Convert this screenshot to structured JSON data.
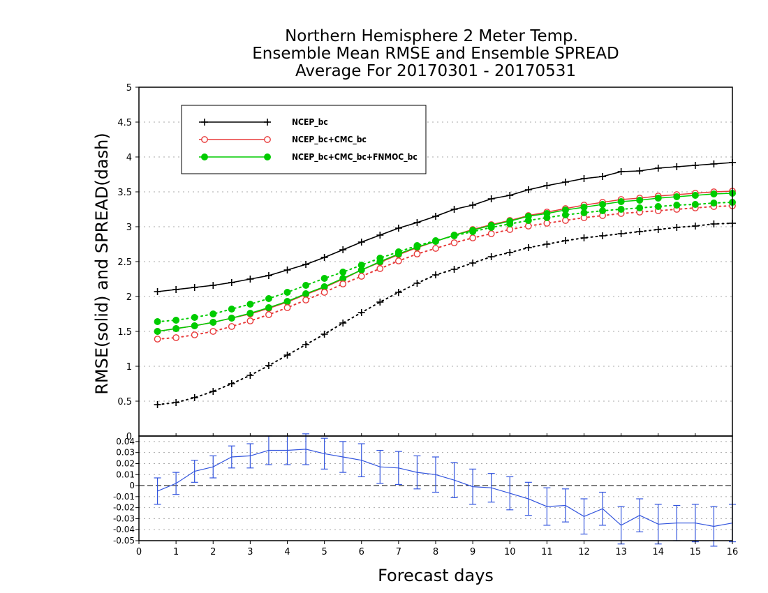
{
  "chart_data": [
    {
      "type": "line",
      "title": [
        "Northern Hemisphere 2 Meter Temp.",
        "Ensemble Mean RMSE and Ensemble SPREAD",
        "Average For 20170301 - 20170531"
      ],
      "xlabel": "Forecast days",
      "ylabel": "RMSE(solid) and SPREAD(dash)",
      "xlim": [
        0,
        16
      ],
      "ylim": [
        0,
        5
      ],
      "yticks": [
        "0.5",
        "1",
        "1.5",
        "2",
        "2.5",
        "3",
        "3.5",
        "4",
        "4.5",
        "5"
      ],
      "grid": "horizontal dotted",
      "legend_position": "top-left",
      "x": [
        0.5,
        1,
        1.5,
        2,
        2.5,
        3,
        3.5,
        4,
        4.5,
        5,
        5.5,
        6,
        6.5,
        7,
        7.5,
        8,
        8.5,
        9,
        9.5,
        10,
        10.5,
        11,
        11.5,
        12,
        12.5,
        13,
        13.5,
        14,
        14.5,
        15,
        15.5,
        16
      ],
      "series": [
        {
          "name": "NCEP_bc",
          "style": "solid",
          "marker": "plus",
          "color": "#000000",
          "values": [
            2.07,
            2.1,
            2.13,
            2.16,
            2.2,
            2.25,
            2.3,
            2.38,
            2.46,
            2.56,
            2.67,
            2.78,
            2.88,
            2.98,
            3.06,
            3.15,
            3.25,
            3.31,
            3.4,
            3.45,
            3.53,
            3.59,
            3.64,
            3.69,
            3.72,
            3.79,
            3.8,
            3.84,
            3.86,
            3.88,
            3.9,
            3.92
          ]
        },
        {
          "name": "NCEP_bc+CMC_bc",
          "style": "solid",
          "marker": "circle-open",
          "color": "#e83b3b",
          "values": [
            1.5,
            1.54,
            1.58,
            1.63,
            1.69,
            1.75,
            1.83,
            1.92,
            2.03,
            2.13,
            2.25,
            2.38,
            2.49,
            2.6,
            2.7,
            2.79,
            2.88,
            2.96,
            3.03,
            3.09,
            3.16,
            3.21,
            3.26,
            3.31,
            3.35,
            3.39,
            3.41,
            3.44,
            3.46,
            3.48,
            3.5,
            3.51
          ]
        },
        {
          "name": "NCEP_bc+CMC_bc+FNMOC_bc",
          "style": "solid",
          "marker": "circle-filled",
          "color": "#00cc00",
          "values": [
            1.5,
            1.54,
            1.58,
            1.63,
            1.69,
            1.76,
            1.84,
            1.93,
            2.04,
            2.14,
            2.26,
            2.38,
            2.5,
            2.61,
            2.71,
            2.79,
            2.88,
            2.95,
            3.02,
            3.08,
            3.15,
            3.19,
            3.24,
            3.28,
            3.32,
            3.36,
            3.38,
            3.41,
            3.43,
            3.45,
            3.47,
            3.48
          ]
        },
        {
          "name": "NCEP_bc spread",
          "style": "dotted",
          "marker": "plus",
          "color": "#000000",
          "values": [
            0.45,
            0.48,
            0.55,
            0.64,
            0.75,
            0.87,
            1.01,
            1.16,
            1.31,
            1.46,
            1.62,
            1.77,
            1.92,
            2.06,
            2.19,
            2.31,
            2.39,
            2.48,
            2.57,
            2.63,
            2.7,
            2.75,
            2.8,
            2.84,
            2.87,
            2.9,
            2.93,
            2.96,
            2.99,
            3.01,
            3.04,
            3.05
          ]
        },
        {
          "name": "NCEP_bc+CMC_bc spread",
          "style": "dotted",
          "marker": "circle-open",
          "color": "#e83b3b",
          "values": [
            1.39,
            1.41,
            1.45,
            1.5,
            1.57,
            1.65,
            1.74,
            1.84,
            1.95,
            2.06,
            2.18,
            2.29,
            2.4,
            2.51,
            2.61,
            2.69,
            2.77,
            2.84,
            2.9,
            2.96,
            3.01,
            3.05,
            3.09,
            3.13,
            3.16,
            3.19,
            3.21,
            3.23,
            3.25,
            3.27,
            3.29,
            3.3
          ]
        },
        {
          "name": "NCEP_bc+CMC_bc+FNMOC_bc spread",
          "style": "dotted",
          "marker": "circle-filled",
          "color": "#00cc00",
          "values": [
            1.64,
            1.66,
            1.7,
            1.75,
            1.82,
            1.89,
            1.97,
            2.06,
            2.16,
            2.26,
            2.35,
            2.45,
            2.55,
            2.64,
            2.73,
            2.8,
            2.87,
            2.93,
            2.99,
            3.04,
            3.09,
            3.13,
            3.17,
            3.2,
            3.23,
            3.25,
            3.27,
            3.29,
            3.31,
            3.32,
            3.34,
            3.35
          ]
        }
      ]
    },
    {
      "type": "line",
      "xlabel": "Forecast days",
      "xlim": [
        0,
        16
      ],
      "ylim": [
        -0.05,
        0.045
      ],
      "xticks": [
        "0",
        "1",
        "2",
        "3",
        "4",
        "5",
        "6",
        "7",
        "8",
        "9",
        "10",
        "11",
        "12",
        "13",
        "14",
        "15",
        "16"
      ],
      "yticks": [
        "-0.05",
        "-0.04",
        "-0.03",
        "-0.02",
        "-0.01",
        "0",
        "0.01",
        "0.02",
        "0.03",
        "0.04"
      ],
      "top_label": "0",
      "grid": "horizontal dotted",
      "reference_line": 0,
      "color": "#3355dd",
      "x": [
        0.5,
        1,
        1.5,
        2,
        2.5,
        3,
        3.5,
        4,
        4.5,
        5,
        5.5,
        6,
        6.5,
        7,
        7.5,
        8,
        8.5,
        9,
        9.5,
        10,
        10.5,
        11,
        11.5,
        12,
        12.5,
        13,
        13.5,
        14,
        14.5,
        15,
        15.5,
        16
      ],
      "values": [
        -0.005,
        0.002,
        0.013,
        0.017,
        0.026,
        0.027,
        0.032,
        0.032,
        0.033,
        0.029,
        0.026,
        0.023,
        0.017,
        0.016,
        0.012,
        0.01,
        0.005,
        -0.001,
        -0.002,
        -0.007,
        -0.012,
        -0.019,
        -0.018,
        -0.028,
        -0.021,
        -0.036,
        -0.027,
        -0.035,
        -0.034,
        -0.034,
        -0.037,
        -0.034
      ],
      "error": [
        0.012,
        0.01,
        0.01,
        0.01,
        0.01,
        0.011,
        0.013,
        0.013,
        0.014,
        0.014,
        0.014,
        0.015,
        0.015,
        0.015,
        0.015,
        0.016,
        0.016,
        0.016,
        0.013,
        0.015,
        0.015,
        0.017,
        0.015,
        0.016,
        0.015,
        0.017,
        0.015,
        0.018,
        0.016,
        0.017,
        0.018,
        0.017
      ]
    }
  ]
}
